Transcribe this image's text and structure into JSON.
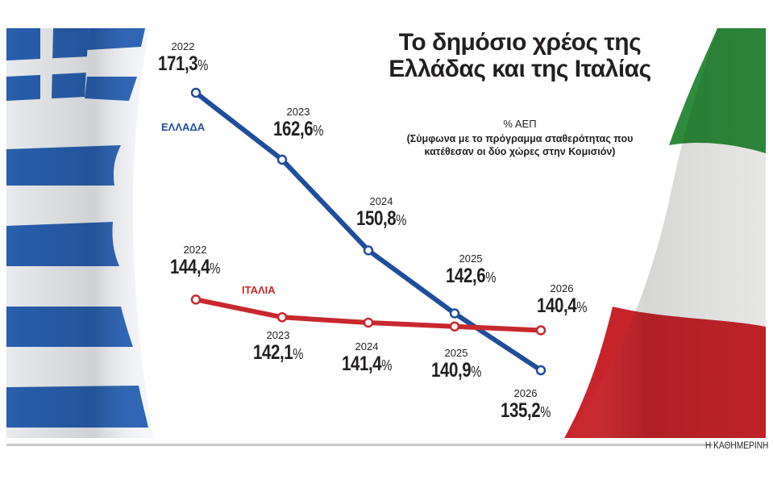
{
  "chart_data": {
    "type": "line",
    "title": "Το δημόσιο χρέος της Ελλάδας και της Ιταλίας",
    "unit": "% ΑΕΠ",
    "note": "(Σύμφωνα με το πρόγραμμα σταθερότητας που κατέθεσαν οι δύο χώρες στην Κομισιόν)",
    "x": [
      "2022",
      "2023",
      "2024",
      "2025",
      "2026"
    ],
    "series": [
      {
        "name": "ΕΛΛΑΔΑ",
        "color": "#1f4e9c",
        "values": [
          171.3,
          162.6,
          150.8,
          142.6,
          135.2
        ],
        "labels": [
          "171,3",
          "162,6",
          "150,8",
          "142,6",
          "135,2"
        ]
      },
      {
        "name": "ΙΤΑΛΙΑ",
        "color": "#c8282d",
        "values": [
          144.4,
          142.1,
          141.4,
          140.9,
          140.4
        ],
        "labels": [
          "144,4",
          "142,1",
          "141,4",
          "140,9",
          "140,4"
        ]
      }
    ],
    "value_suffix": "%",
    "grid": false
  },
  "source": "Η ΚΑΘΗΜΕΡΙΝΗ"
}
